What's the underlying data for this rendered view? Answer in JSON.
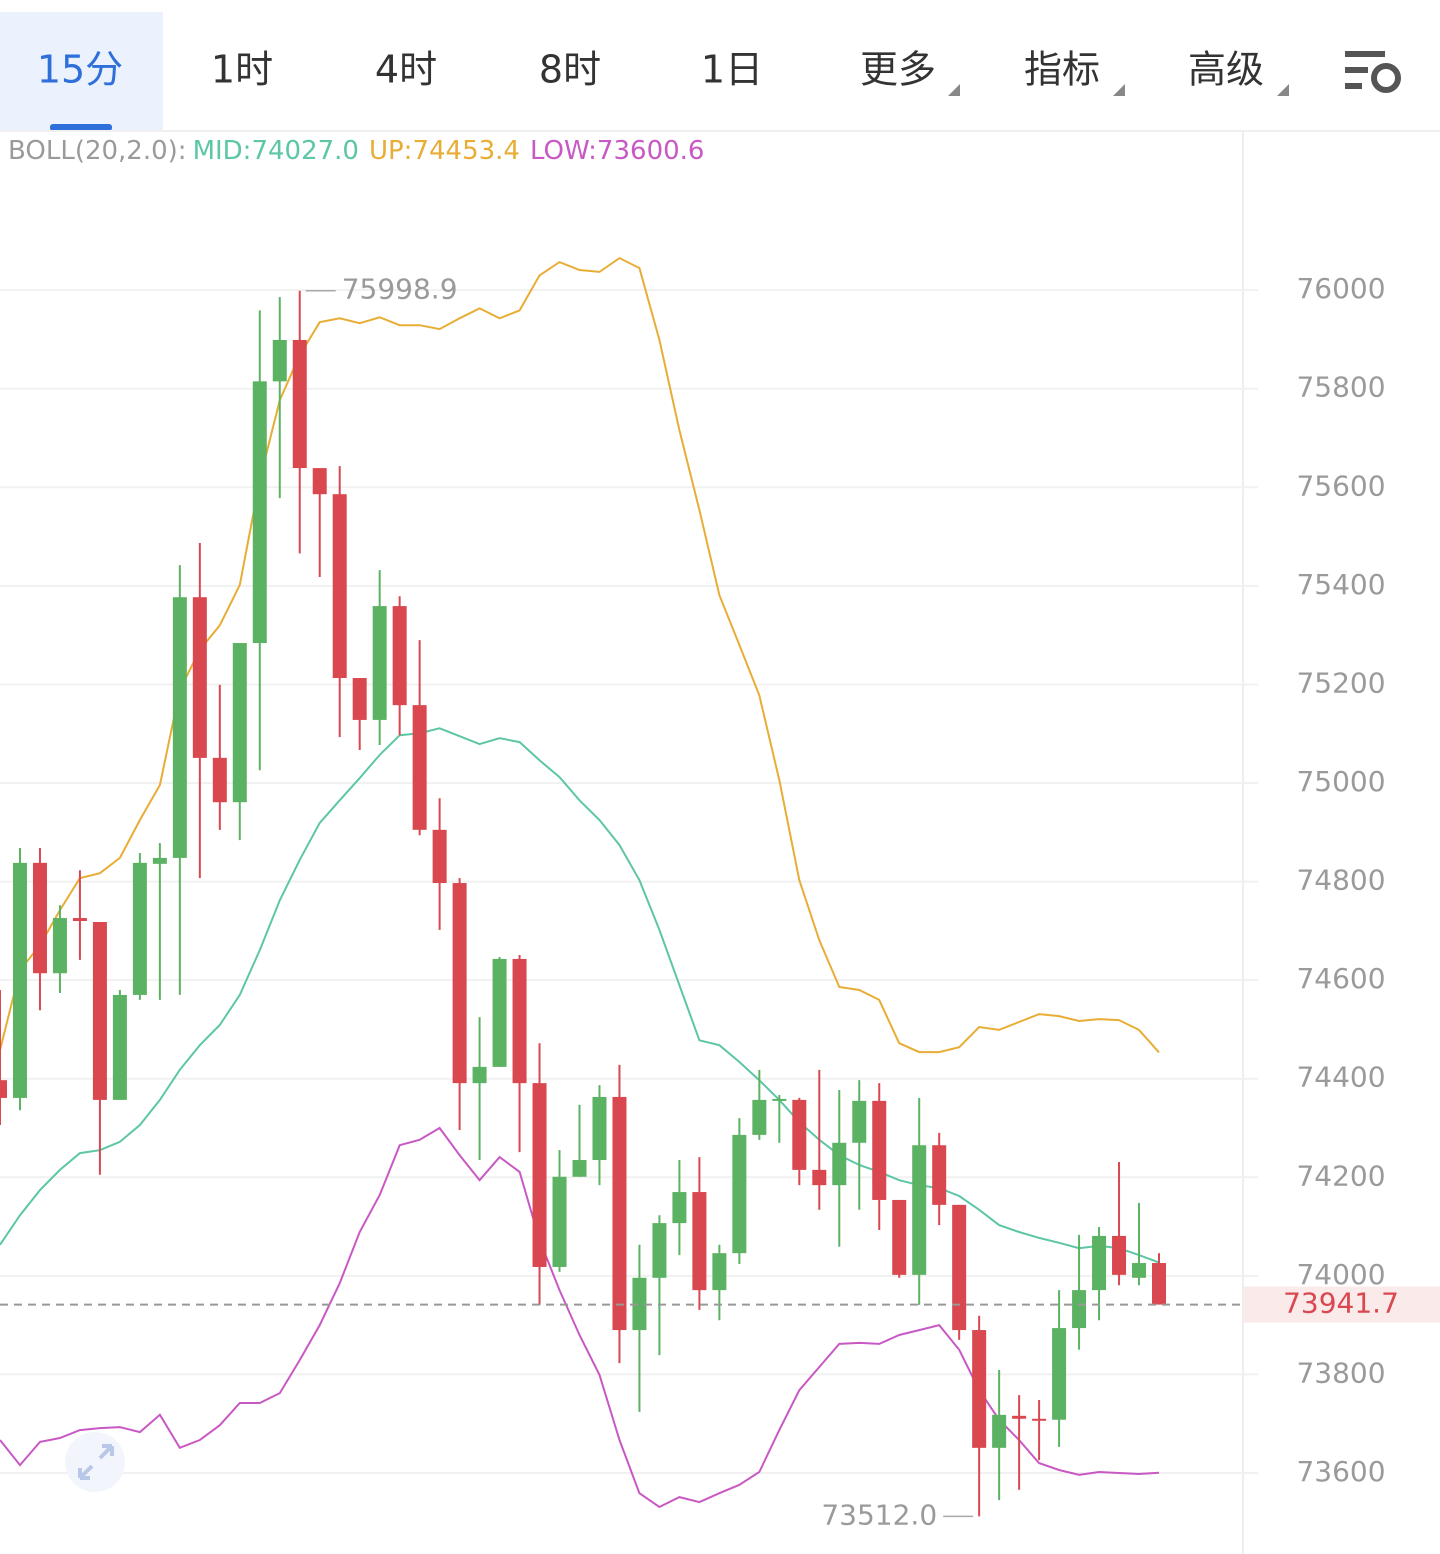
{
  "tabs": [
    "15分",
    "1时",
    "4时",
    "8时",
    "1日",
    "更多",
    "指标",
    "高级"
  ],
  "chart_data": {
    "type": "candlestick",
    "indicator": "BOLL(20,2.0):",
    "up_color": "#5cb263",
    "down_color": "#d9474f",
    "open": [
      74397,
      74361,
      74838,
      74614,
      74726,
      74718,
      74357,
      74570,
      74836,
      74848,
      75377,
      75051,
      74961,
      75284,
      75815,
      75899,
      75639,
      75586,
      75213,
      75128,
      75359,
      75158,
      74905,
      74797,
      74391,
      74424,
      74643,
      74391,
      74018,
      74201,
      74235,
      74363,
      73890,
      73996,
      74107,
      74170,
      73971,
      74046,
      74286,
      74355,
      74357,
      74215,
      74184,
      74270,
      74355,
      74154,
      74002,
      74265,
      74144,
      73890,
      73651,
      73716,
      73710,
      73708,
      73894,
      73971,
      74081,
      73996,
      74026
    ],
    "high": [
      74580,
      74868,
      74868,
      74752,
      74823,
      74718,
      74580,
      74858,
      74878,
      75442,
      75487,
      75199,
      75284,
      75959,
      75986,
      75998.9,
      75639,
      75643,
      75213,
      75432,
      75379,
      75290,
      74969,
      74807,
      74525,
      74647,
      74651,
      74472,
      74255,
      74347,
      74387,
      74428,
      74063,
      74123,
      74235,
      74241,
      74063,
      74320,
      74418,
      74367,
      74361,
      74418,
      74377,
      74397,
      74391,
      74154,
      74361,
      74290,
      74144,
      73919,
      73809,
      73758,
      73748,
      73971,
      74083,
      74099,
      74231,
      74148,
      74046
    ],
    "low": [
      74306,
      74336,
      74539,
      74574,
      74641,
      74205,
      74357,
      74560,
      74560,
      74570,
      74807,
      74905,
      74884,
      75026,
      75578,
      75466,
      75418,
      75093,
      75067,
      75077,
      75097,
      74894,
      74702,
      74296,
      74235,
      74424,
      74251,
      73941,
      74008,
      74201,
      74184,
      73823,
      73724,
      73839,
      74042,
      73931,
      73910,
      74024,
      74276,
      74270,
      74184,
      74134,
      74059,
      74134,
      74093,
      73996,
      73941,
      74103,
      73870,
      73512,
      73545,
      73566,
      73626,
      73653,
      73850,
      73910,
      73981,
      73981,
      73941.7
    ],
    "close": [
      74361,
      74838,
      74614,
      74726,
      74720,
      74357,
      74570,
      74838,
      74848,
      75377,
      75051,
      74961,
      75284,
      75815,
      75899,
      75639,
      75586,
      75213,
      75128,
      75359,
      75158,
      74905,
      74797,
      74391,
      74424,
      74643,
      74391,
      74018,
      74201,
      74235,
      74363,
      73890,
      73996,
      74107,
      74170,
      73971,
      74046,
      74286,
      74357,
      74359,
      74215,
      74184,
      74270,
      74355,
      74154,
      74002,
      74265,
      74144,
      73890,
      73651,
      73718,
      73710,
      73706,
      73894,
      73971,
      74081,
      74002,
      74026,
      73941.7
    ],
    "series": [
      {
        "name": "MID:74027.0",
        "color": "#5cc6a6",
        "values": [
          74063,
          74123,
          74174,
          74215,
          74249,
          74255,
          74272,
          74306,
          74357,
          74418,
          74468,
          74509,
          74570,
          74661,
          74762,
          74844,
          74919,
          74965,
          75010,
          75057,
          75097,
          75101,
          75111,
          75095,
          75079,
          75091,
          75083,
          75046,
          75012,
          74965,
          74925,
          74874,
          74803,
          74702,
          74590,
          74478,
          74468,
          74434,
          74397,
          74357,
          74312,
          74276,
          74245,
          74225,
          74211,
          74194,
          74184,
          74178,
          74162,
          74134,
          74103,
          74089,
          74077,
          74067,
          74056,
          74061,
          74056,
          74042,
          74027.0
        ]
      },
      {
        "name": "UP:74453.4",
        "color": "#e8ad35",
        "values": [
          74458,
          74620,
          74671,
          74742,
          74807,
          74817,
          74848,
          74925,
          74996,
          75189,
          75270,
          75320,
          75402,
          75615,
          75777,
          75868,
          75935,
          75943,
          75933,
          75945,
          75929,
          75929,
          75921,
          75943,
          75963,
          75943,
          75959,
          76030,
          76057,
          76041,
          76037,
          76065,
          76045,
          75899,
          75716,
          75554,
          75381,
          75280,
          75178,
          75006,
          74803,
          74681,
          74586,
          74580,
          74560,
          74472,
          74454,
          74454,
          74464,
          74505,
          74499,
          74515,
          74531,
          74527,
          74517,
          74521,
          74519,
          74499,
          74453.4
        ]
      },
      {
        "name": "LOW:73600.6",
        "color": "#c859c4",
        "values": [
          73667,
          73616,
          73663,
          73671,
          73687,
          73691,
          73693,
          73683,
          73718,
          73651,
          73667,
          73697,
          73742,
          73742,
          73762,
          73829,
          73900,
          73985,
          74089,
          74164,
          74265,
          74276,
          74300,
          74245,
          74194,
          74241,
          74211,
          74073,
          73971,
          73880,
          73799,
          73667,
          73559,
          73531,
          73551,
          73541,
          73559,
          73576,
          73602,
          73687,
          73768,
          73815,
          73862,
          73864,
          73862,
          73880,
          73890,
          73900,
          73850,
          73768,
          73708,
          73667,
          73620,
          73606,
          73596,
          73602,
          73600,
          73598,
          73600.6
        ]
      }
    ],
    "ylim": [
      73464,
      76325
    ],
    "yticks": [
      73600,
      73800,
      74000,
      74200,
      74400,
      74600,
      74800,
      75000,
      75200,
      75400,
      75600,
      75800,
      76000
    ],
    "grid": true,
    "high_marker": 75998.9,
    "low_marker": {
      "value": 73512,
      "label": "73512.0"
    },
    "last_price": 73941.7
  }
}
